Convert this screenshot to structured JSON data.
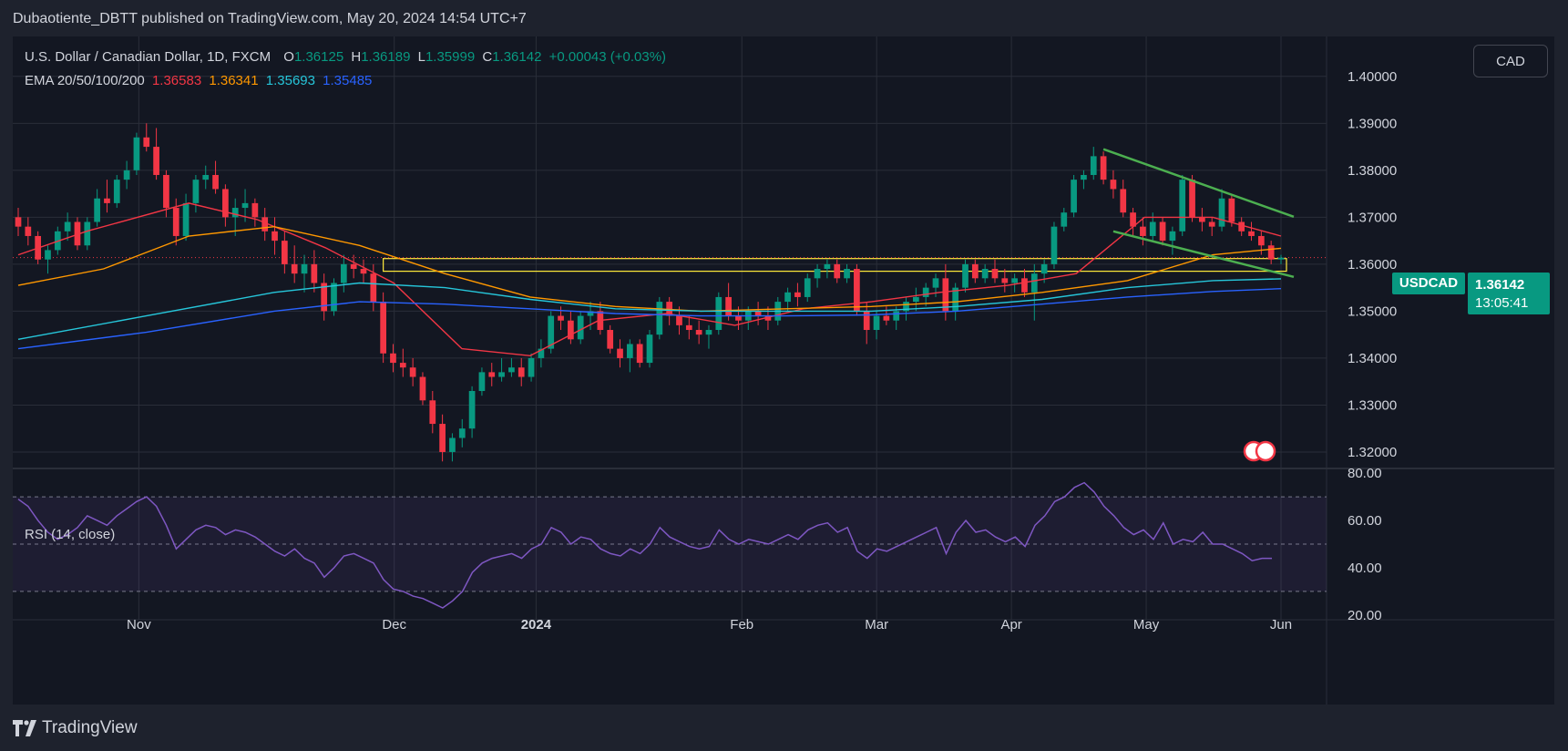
{
  "header": {
    "published_text": "Dubaotiente_DBTT published on TradingView.com, May 20, 2024 14:54 UTC+7"
  },
  "legend": {
    "instrument": "U.S. Dollar / Canadian Dollar, 1D, FXCM",
    "o_label": "O",
    "o_value": "1.36125",
    "h_label": "H",
    "h_value": "1.36189",
    "l_label": "L",
    "l_value": "1.35999",
    "c_label": "C",
    "c_value": "1.36142",
    "change": "+0.00043 (+0.03%)",
    "ema_label": "EMA 20/50/100/200",
    "ema20": "1.36583",
    "ema50": "1.36341",
    "ema100": "1.35693",
    "ema200": "1.35485"
  },
  "currency_button": "CAD",
  "price_tag": {
    "symbol": "USDCAD",
    "price": "1.36142",
    "countdown": "13:05:41"
  },
  "rsi": {
    "label": "RSI (14, close)"
  },
  "footer": {
    "brand": "TradingView"
  },
  "colors": {
    "up": "#089981",
    "down": "#f23645",
    "ema20": "#f23645",
    "ema50": "#ff9800",
    "ema100": "#26c6da",
    "ema200": "#2962ff",
    "rsi": "#7e57c2",
    "trendline": "#4caf50",
    "zone": "#ffeb3b"
  },
  "chart_data": {
    "type": "candlestick",
    "title": "U.S. Dollar / Canadian Dollar, 1D, FXCM",
    "price_axis": {
      "ticks": [
        "1.40000",
        "1.39000",
        "1.38000",
        "1.37000",
        "1.36000",
        "1.35000",
        "1.34000",
        "1.33000",
        "1.32000"
      ],
      "range": [
        1.3165,
        1.4085
      ]
    },
    "rsi_axis": {
      "ticks": [
        "80.00",
        "60.00",
        "40.00",
        "20.00"
      ],
      "range": [
        18,
        82
      ],
      "bands": [
        70,
        50,
        30
      ]
    },
    "time_axis": {
      "labels": [
        "Nov",
        "Dec",
        "2024",
        "Feb",
        "Mar",
        "Apr",
        "May",
        "Jun"
      ]
    },
    "ema_series": [
      {
        "name": "EMA 20",
        "points": [
          [
            0,
            1.362
          ],
          [
            8,
            1.367
          ],
          [
            20,
            1.373
          ],
          [
            28,
            1.3695
          ],
          [
            36,
            1.3635
          ],
          [
            44,
            1.356
          ],
          [
            52,
            1.342
          ],
          [
            60,
            1.3405
          ],
          [
            68,
            1.348
          ],
          [
            76,
            1.3495
          ],
          [
            84,
            1.347
          ],
          [
            92,
            1.3505
          ],
          [
            100,
            1.352
          ],
          [
            108,
            1.354
          ],
          [
            116,
            1.3555
          ],
          [
            124,
            1.358
          ],
          [
            132,
            1.37
          ],
          [
            140,
            1.37
          ],
          [
            148,
            1.366
          ]
        ]
      },
      {
        "name": "EMA 50",
        "points": [
          [
            0,
            1.3555
          ],
          [
            10,
            1.359
          ],
          [
            20,
            1.366
          ],
          [
            30,
            1.368
          ],
          [
            40,
            1.364
          ],
          [
            50,
            1.358
          ],
          [
            60,
            1.353
          ],
          [
            70,
            1.351
          ],
          [
            80,
            1.35
          ],
          [
            90,
            1.3505
          ],
          [
            100,
            1.351
          ],
          [
            110,
            1.352
          ],
          [
            120,
            1.354
          ],
          [
            130,
            1.3565
          ],
          [
            140,
            1.362
          ],
          [
            148,
            1.3634
          ]
        ]
      },
      {
        "name": "EMA 100",
        "points": [
          [
            0,
            1.344
          ],
          [
            15,
            1.349
          ],
          [
            30,
            1.354
          ],
          [
            40,
            1.356
          ],
          [
            50,
            1.355
          ],
          [
            60,
            1.3525
          ],
          [
            70,
            1.3505
          ],
          [
            80,
            1.35
          ],
          [
            90,
            1.35
          ],
          [
            100,
            1.35
          ],
          [
            110,
            1.351
          ],
          [
            120,
            1.3525
          ],
          [
            130,
            1.355
          ],
          [
            140,
            1.3565
          ],
          [
            148,
            1.3569
          ]
        ]
      },
      {
        "name": "EMA 200",
        "points": [
          [
            0,
            1.342
          ],
          [
            15,
            1.3455
          ],
          [
            30,
            1.35
          ],
          [
            40,
            1.352
          ],
          [
            50,
            1.3515
          ],
          [
            60,
            1.3505
          ],
          [
            70,
            1.3495
          ],
          [
            80,
            1.349
          ],
          [
            90,
            1.349
          ],
          [
            100,
            1.3492
          ],
          [
            110,
            1.35
          ],
          [
            120,
            1.3515
          ],
          [
            130,
            1.353
          ],
          [
            140,
            1.3542
          ],
          [
            148,
            1.3548
          ]
        ]
      }
    ],
    "candles": [
      [
        1.37,
        1.372,
        1.366,
        1.368
      ],
      [
        1.368,
        1.37,
        1.364,
        1.366
      ],
      [
        1.366,
        1.367,
        1.36,
        1.361
      ],
      [
        1.361,
        1.364,
        1.358,
        1.363
      ],
      [
        1.363,
        1.368,
        1.362,
        1.367
      ],
      [
        1.367,
        1.371,
        1.365,
        1.369
      ],
      [
        1.369,
        1.37,
        1.363,
        1.364
      ],
      [
        1.364,
        1.37,
        1.363,
        1.369
      ],
      [
        1.369,
        1.376,
        1.368,
        1.374
      ],
      [
        1.374,
        1.378,
        1.371,
        1.373
      ],
      [
        1.373,
        1.379,
        1.372,
        1.378
      ],
      [
        1.378,
        1.382,
        1.376,
        1.38
      ],
      [
        1.38,
        1.388,
        1.379,
        1.387
      ],
      [
        1.387,
        1.39,
        1.384,
        1.385
      ],
      [
        1.385,
        1.389,
        1.378,
        1.379
      ],
      [
        1.379,
        1.38,
        1.37,
        1.372
      ],
      [
        1.372,
        1.374,
        1.364,
        1.366
      ],
      [
        1.366,
        1.375,
        1.365,
        1.373
      ],
      [
        1.373,
        1.379,
        1.371,
        1.378
      ],
      [
        1.378,
        1.381,
        1.376,
        1.379
      ],
      [
        1.379,
        1.382,
        1.375,
        1.376
      ],
      [
        1.376,
        1.377,
        1.368,
        1.37
      ],
      [
        1.37,
        1.374,
        1.366,
        1.372
      ],
      [
        1.372,
        1.376,
        1.369,
        1.373
      ],
      [
        1.373,
        1.374,
        1.368,
        1.37
      ],
      [
        1.37,
        1.372,
        1.365,
        1.367
      ],
      [
        1.367,
        1.37,
        1.362,
        1.365
      ],
      [
        1.365,
        1.367,
        1.358,
        1.36
      ],
      [
        1.36,
        1.364,
        1.356,
        1.358
      ],
      [
        1.358,
        1.362,
        1.354,
        1.36
      ],
      [
        1.36,
        1.363,
        1.354,
        1.356
      ],
      [
        1.356,
        1.358,
        1.348,
        1.35
      ],
      [
        1.35,
        1.357,
        1.349,
        1.356
      ],
      [
        1.356,
        1.362,
        1.354,
        1.36
      ],
      [
        1.36,
        1.362,
        1.357,
        1.359
      ],
      [
        1.359,
        1.361,
        1.356,
        1.358
      ],
      [
        1.358,
        1.36,
        1.35,
        1.352
      ],
      [
        1.352,
        1.354,
        1.339,
        1.341
      ],
      [
        1.341,
        1.343,
        1.337,
        1.339
      ],
      [
        1.339,
        1.342,
        1.336,
        1.338
      ],
      [
        1.338,
        1.34,
        1.334,
        1.336
      ],
      [
        1.336,
        1.337,
        1.33,
        1.331
      ],
      [
        1.331,
        1.333,
        1.324,
        1.326
      ],
      [
        1.326,
        1.328,
        1.318,
        1.32
      ],
      [
        1.32,
        1.324,
        1.318,
        1.323
      ],
      [
        1.323,
        1.327,
        1.321,
        1.325
      ],
      [
        1.325,
        1.334,
        1.323,
        1.333
      ],
      [
        1.333,
        1.338,
        1.332,
        1.337
      ],
      [
        1.337,
        1.339,
        1.334,
        1.336
      ],
      [
        1.336,
        1.34,
        1.335,
        1.337
      ],
      [
        1.337,
        1.34,
        1.336,
        1.338
      ],
      [
        1.338,
        1.34,
        1.334,
        1.336
      ],
      [
        1.336,
        1.341,
        1.335,
        1.34
      ],
      [
        1.34,
        1.344,
        1.338,
        1.342
      ],
      [
        1.342,
        1.35,
        1.341,
        1.349
      ],
      [
        1.349,
        1.351,
        1.346,
        1.348
      ],
      [
        1.348,
        1.35,
        1.343,
        1.344
      ],
      [
        1.344,
        1.35,
        1.343,
        1.349
      ],
      [
        1.349,
        1.352,
        1.346,
        1.35
      ],
      [
        1.35,
        1.352,
        1.345,
        1.346
      ],
      [
        1.346,
        1.347,
        1.341,
        1.342
      ],
      [
        1.342,
        1.344,
        1.338,
        1.34
      ],
      [
        1.34,
        1.344,
        1.337,
        1.343
      ],
      [
        1.343,
        1.344,
        1.338,
        1.339
      ],
      [
        1.339,
        1.346,
        1.338,
        1.345
      ],
      [
        1.345,
        1.353,
        1.344,
        1.352
      ],
      [
        1.352,
        1.353,
        1.347,
        1.349
      ],
      [
        1.349,
        1.351,
        1.345,
        1.347
      ],
      [
        1.347,
        1.349,
        1.344,
        1.346
      ],
      [
        1.346,
        1.348,
        1.343,
        1.345
      ],
      [
        1.345,
        1.347,
        1.342,
        1.346
      ],
      [
        1.346,
        1.354,
        1.345,
        1.353
      ],
      [
        1.353,
        1.356,
        1.348,
        1.349
      ],
      [
        1.349,
        1.351,
        1.346,
        1.348
      ],
      [
        1.348,
        1.351,
        1.346,
        1.35
      ],
      [
        1.35,
        1.352,
        1.347,
        1.349
      ],
      [
        1.349,
        1.351,
        1.346,
        1.348
      ],
      [
        1.348,
        1.353,
        1.347,
        1.352
      ],
      [
        1.352,
        1.355,
        1.35,
        1.354
      ],
      [
        1.354,
        1.356,
        1.351,
        1.353
      ],
      [
        1.353,
        1.358,
        1.352,
        1.357
      ],
      [
        1.357,
        1.36,
        1.355,
        1.359
      ],
      [
        1.359,
        1.361,
        1.357,
        1.36
      ],
      [
        1.36,
        1.361,
        1.356,
        1.357
      ],
      [
        1.357,
        1.36,
        1.356,
        1.359
      ],
      [
        1.359,
        1.36,
        1.349,
        1.35
      ],
      [
        1.35,
        1.352,
        1.343,
        1.346
      ],
      [
        1.346,
        1.35,
        1.344,
        1.349
      ],
      [
        1.349,
        1.351,
        1.347,
        1.348
      ],
      [
        1.348,
        1.351,
        1.346,
        1.35
      ],
      [
        1.35,
        1.353,
        1.348,
        1.352
      ],
      [
        1.352,
        1.355,
        1.35,
        1.353
      ],
      [
        1.353,
        1.356,
        1.351,
        1.355
      ],
      [
        1.355,
        1.358,
        1.353,
        1.357
      ],
      [
        1.357,
        1.36,
        1.348,
        1.35
      ],
      [
        1.35,
        1.356,
        1.348,
        1.355
      ],
      [
        1.355,
        1.361,
        1.354,
        1.36
      ],
      [
        1.36,
        1.361,
        1.356,
        1.357
      ],
      [
        1.357,
        1.36,
        1.356,
        1.359
      ],
      [
        1.359,
        1.361,
        1.356,
        1.357
      ],
      [
        1.357,
        1.359,
        1.354,
        1.356
      ],
      [
        1.356,
        1.358,
        1.354,
        1.357
      ],
      [
        1.357,
        1.359,
        1.353,
        1.354
      ],
      [
        1.354,
        1.36,
        1.348,
        1.358
      ],
      [
        1.358,
        1.361,
        1.356,
        1.36
      ],
      [
        1.36,
        1.369,
        1.359,
        1.368
      ],
      [
        1.368,
        1.372,
        1.367,
        1.371
      ],
      [
        1.371,
        1.379,
        1.37,
        1.378
      ],
      [
        1.378,
        1.38,
        1.376,
        1.379
      ],
      [
        1.379,
        1.385,
        1.378,
        1.383
      ],
      [
        1.383,
        1.384,
        1.377,
        1.378
      ],
      [
        1.378,
        1.38,
        1.374,
        1.376
      ],
      [
        1.376,
        1.378,
        1.37,
        1.371
      ],
      [
        1.371,
        1.372,
        1.366,
        1.368
      ],
      [
        1.368,
        1.37,
        1.364,
        1.366
      ],
      [
        1.366,
        1.371,
        1.365,
        1.369
      ],
      [
        1.369,
        1.37,
        1.364,
        1.365
      ],
      [
        1.365,
        1.368,
        1.362,
        1.367
      ],
      [
        1.367,
        1.379,
        1.366,
        1.378
      ],
      [
        1.378,
        1.379,
        1.369,
        1.37
      ],
      [
        1.37,
        1.372,
        1.367,
        1.369
      ],
      [
        1.369,
        1.37,
        1.366,
        1.368
      ],
      [
        1.368,
        1.376,
        1.367,
        1.374
      ],
      [
        1.374,
        1.375,
        1.368,
        1.369
      ],
      [
        1.369,
        1.37,
        1.366,
        1.367
      ],
      [
        1.367,
        1.369,
        1.365,
        1.366
      ],
      [
        1.366,
        1.367,
        1.362,
        1.364
      ],
      [
        1.364,
        1.365,
        1.36,
        1.361
      ],
      [
        1.361,
        1.362,
        1.36,
        1.3614
      ]
    ],
    "rsi_values": [
      69,
      66,
      60,
      55,
      52,
      54,
      57,
      62,
      60,
      58,
      62,
      65,
      68,
      70,
      66,
      58,
      48,
      52,
      56,
      58,
      57,
      54,
      56,
      55,
      53,
      50,
      47,
      45,
      48,
      44,
      42,
      36,
      40,
      45,
      46,
      44,
      42,
      35,
      31,
      30,
      28,
      27,
      25,
      23,
      26,
      30,
      38,
      42,
      44,
      45,
      46,
      44,
      48,
      50,
      57,
      55,
      50,
      53,
      52,
      48,
      46,
      45,
      48,
      46,
      50,
      57,
      53,
      51,
      49,
      48,
      49,
      56,
      52,
      50,
      52,
      51,
      50,
      52,
      54,
      52,
      56,
      58,
      59,
      55,
      57,
      47,
      44,
      48,
      47,
      49,
      51,
      53,
      55,
      57,
      46,
      55,
      60,
      55,
      56,
      53,
      51,
      53,
      49,
      58,
      62,
      68,
      70,
      74,
      76,
      72,
      66,
      62,
      57,
      54,
      56,
      52,
      59,
      50,
      52,
      51,
      55,
      50,
      50,
      48,
      46,
      43,
      44,
      44
    ]
  }
}
